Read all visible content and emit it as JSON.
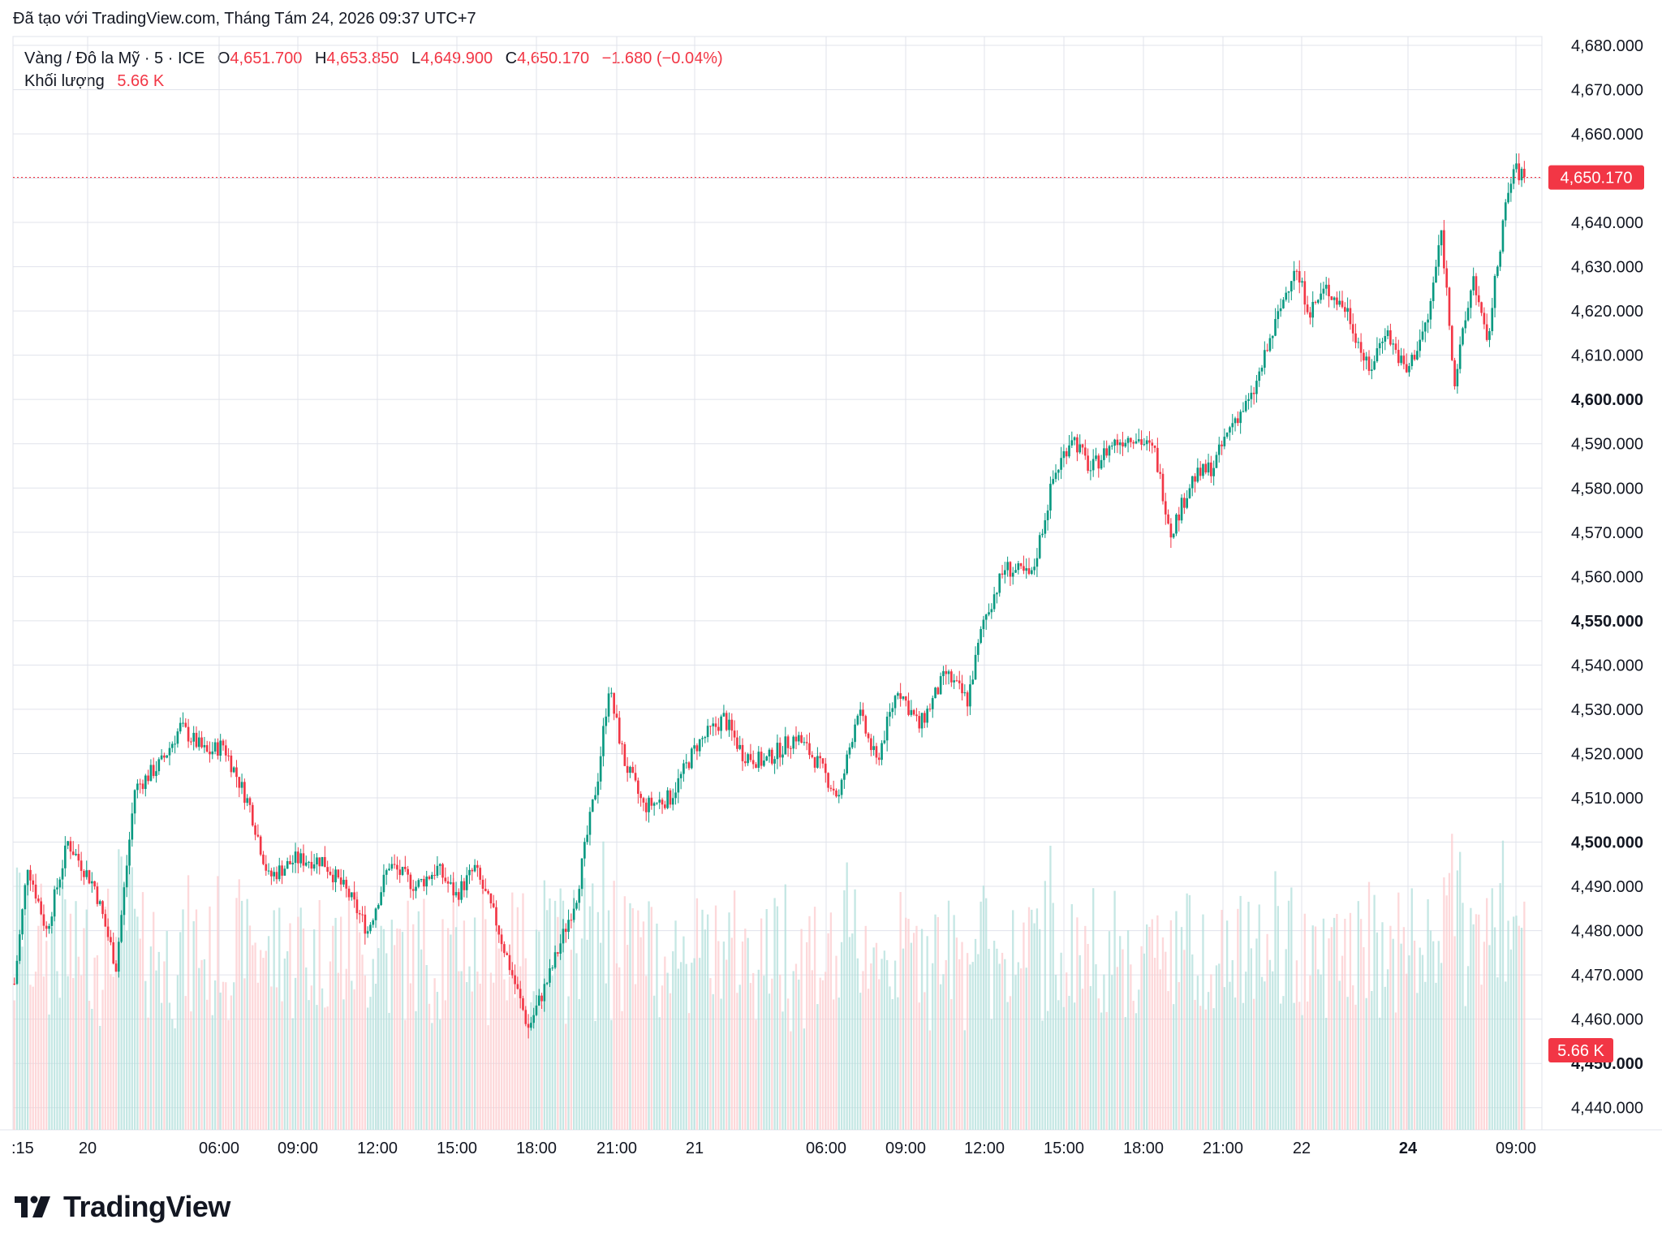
{
  "header": {
    "text": "Đã tạo với TradingView.com, Tháng Tám 24, 2026 09:37 UTC+7"
  },
  "legend": {
    "symbol": "Vàng / Đô la Mỹ · 5 · ICE",
    "o_label": "O",
    "o_value": "4,651.700",
    "h_label": "H",
    "h_value": "4,653.850",
    "l_label": "L",
    "l_value": "4,649.900",
    "c_label": "C",
    "c_value": "4,650.170",
    "change": "−1.680 (−0.04%)",
    "volume_label": "Khối lượng",
    "volume_value": "5.66 K"
  },
  "brand": {
    "name": "TradingView",
    "logo_icon": "tradingview-logo-icon"
  },
  "colors": {
    "up": "#089981",
    "down": "#f23645",
    "grid": "#e0e3eb",
    "text": "#131722",
    "vol_up": "#b2dfdb",
    "vol_down": "#fccbcd"
  },
  "chart_data": {
    "type": "candlestick",
    "title": "Vàng / Đô la Mỹ · 5 · ICE",
    "ylim": [
      4435,
      4682
    ],
    "y_ticks": [
      "4,440.000",
      "4,450.000",
      "4,460.000",
      "4,470.000",
      "4,480.000",
      "4,490.000",
      "4,500.000",
      "4,510.000",
      "4,520.000",
      "4,530.000",
      "4,540.000",
      "4,550.000",
      "4,560.000",
      "4,570.000",
      "4,580.000",
      "4,590.000",
      "4,600.000",
      "4,610.000",
      "4,620.000",
      "4,630.000",
      "4,640.000",
      "4,650.000",
      "4,660.000",
      "4,670.000",
      "4,680.000"
    ],
    "y_ticks_bold": [
      "4,450.000",
      "4,500.000",
      "4,550.000",
      "4,600.000"
    ],
    "x_ticks": [
      ":15",
      "20",
      "06:00",
      "09:00",
      "12:00",
      "15:00",
      "18:00",
      "21:00",
      "21",
      "06:00",
      "09:00",
      "12:00",
      "15:00",
      "18:00",
      "21:00",
      "22",
      "24",
      "09:00"
    ],
    "x_ticks_bold": [
      "24"
    ],
    "last_price": {
      "value": 4650.17,
      "label": "4,650.170"
    },
    "last_volume": {
      "label": "5.66 K"
    },
    "price_path": [
      [
        0,
        4468
      ],
      [
        5,
        4495
      ],
      [
        12,
        4480
      ],
      [
        20,
        4500
      ],
      [
        30,
        4490
      ],
      [
        38,
        4472
      ],
      [
        45,
        4512
      ],
      [
        55,
        4518
      ],
      [
        62,
        4526
      ],
      [
        72,
        4520
      ],
      [
        78,
        4522
      ],
      [
        88,
        4508
      ],
      [
        95,
        4492
      ],
      [
        105,
        4496
      ],
      [
        115,
        4496
      ],
      [
        125,
        4488
      ],
      [
        132,
        4480
      ],
      [
        140,
        4495
      ],
      [
        150,
        4490
      ],
      [
        158,
        4494
      ],
      [
        165,
        4488
      ],
      [
        172,
        4494
      ],
      [
        180,
        4482
      ],
      [
        186,
        4470
      ],
      [
        192,
        4458
      ],
      [
        200,
        4470
      ],
      [
        210,
        4488
      ],
      [
        218,
        4515
      ],
      [
        222,
        4535
      ],
      [
        228,
        4518
      ],
      [
        235,
        4508
      ],
      [
        245,
        4510
      ],
      [
        255,
        4522
      ],
      [
        265,
        4528
      ],
      [
        272,
        4520
      ],
      [
        280,
        4518
      ],
      [
        292,
        4524
      ],
      [
        300,
        4518
      ],
      [
        308,
        4510
      ],
      [
        315,
        4530
      ],
      [
        322,
        4518
      ],
      [
        330,
        4535
      ],
      [
        338,
        4526
      ],
      [
        348,
        4538
      ],
      [
        356,
        4532
      ],
      [
        362,
        4550
      ],
      [
        370,
        4562
      ],
      [
        380,
        4560
      ],
      [
        388,
        4582
      ],
      [
        395,
        4592
      ],
      [
        402,
        4584
      ],
      [
        410,
        4590
      ],
      [
        418,
        4592
      ],
      [
        426,
        4588
      ],
      [
        432,
        4570
      ],
      [
        440,
        4582
      ],
      [
        448,
        4585
      ],
      [
        455,
        4595
      ],
      [
        462,
        4600
      ],
      [
        470,
        4615
      ],
      [
        478,
        4630
      ],
      [
        484,
        4620
      ],
      [
        490,
        4625
      ],
      [
        498,
        4620
      ],
      [
        506,
        4606
      ],
      [
        512,
        4616
      ],
      [
        520,
        4606
      ],
      [
        528,
        4618
      ],
      [
        533,
        4638
      ],
      [
        538,
        4604
      ],
      [
        545,
        4628
      ],
      [
        550,
        4612
      ],
      [
        556,
        4640
      ],
      [
        560,
        4652
      ],
      [
        564,
        4650.17
      ]
    ],
    "n_candles": 565
  }
}
